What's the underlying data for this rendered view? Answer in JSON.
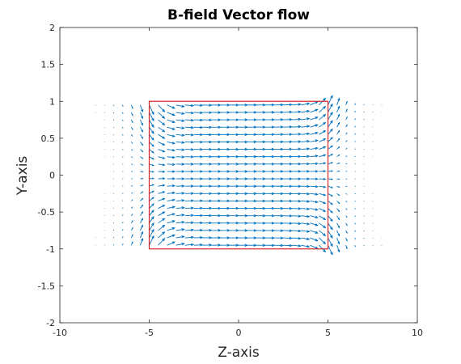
{
  "chart_data": {
    "type": "quiver",
    "title": "B-field Vector flow",
    "xlabel": "Z-axis",
    "ylabel": "Y-axis",
    "xlim": [
      -10,
      10
    ],
    "ylim": [
      -2,
      2
    ],
    "x_ticks": [
      -10,
      -5,
      0,
      5,
      10
    ],
    "y_ticks": [
      -2,
      -1.5,
      -1,
      -0.5,
      0,
      0.5,
      1,
      1.5,
      2
    ],
    "x_tick_labels": [
      "-10",
      "-5",
      "0",
      "5",
      "10"
    ],
    "y_tick_labels": [
      "-2",
      "-1.5",
      "-1",
      "-0.5",
      "0",
      "0.5",
      "1",
      "1.5",
      "2"
    ],
    "grid": false,
    "box": true,
    "vector_field": {
      "color": "#0072BD",
      "z_range": [
        -9.5,
        9.5
      ],
      "z_step": 0.5,
      "y_range": [
        -0.95,
        0.95
      ],
      "y_step": 0.1,
      "direction": "+z",
      "peak_magnitude_region": "inside solenoid",
      "flaring_at_ends": true
    },
    "solenoid_outline": {
      "color": "#D62728",
      "z": [
        -5,
        5
      ],
      "y": [
        -1,
        1
      ]
    }
  }
}
